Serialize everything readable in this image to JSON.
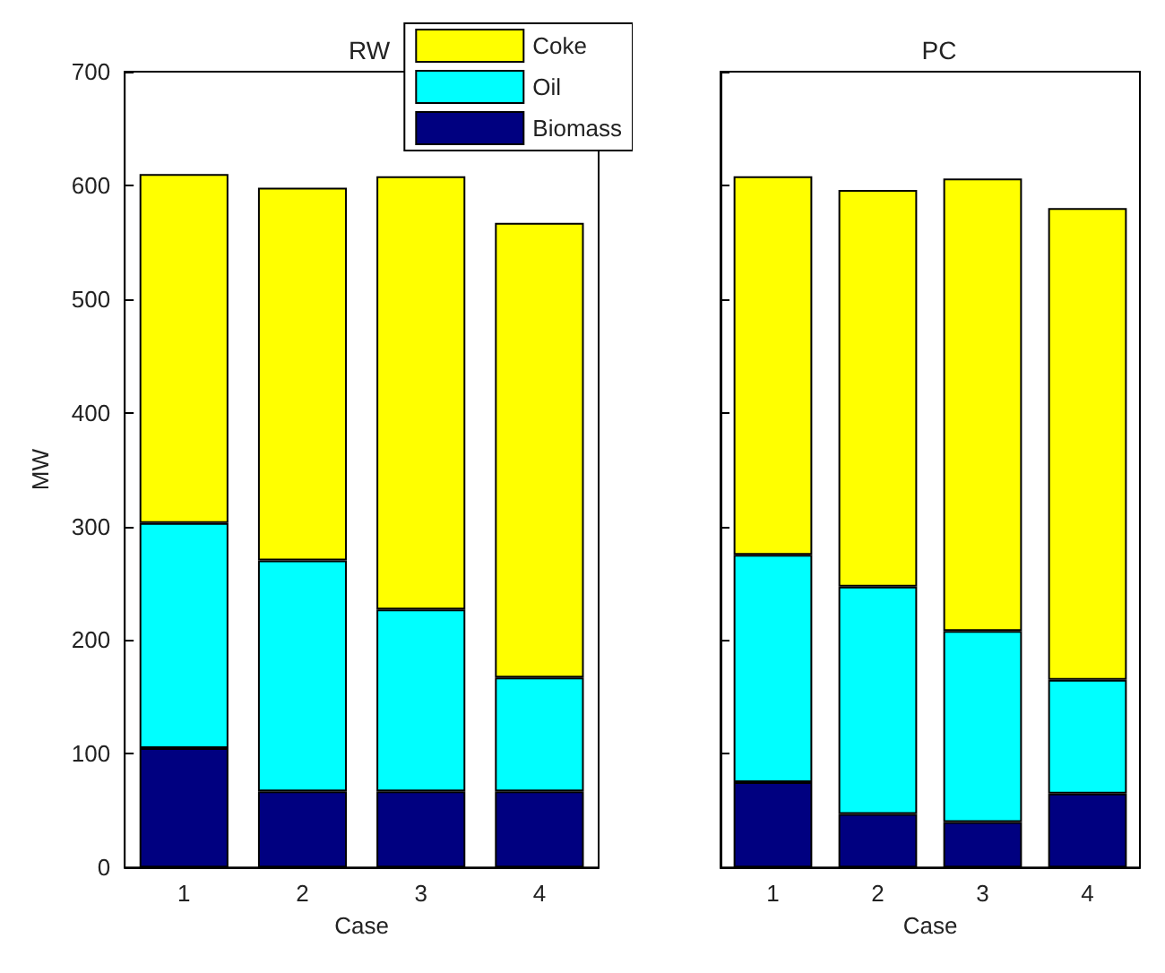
{
  "chart_data": [
    {
      "type": "bar",
      "title": "RW",
      "xlabel": "Case",
      "ylabel": "MW",
      "categories": [
        "1",
        "2",
        "3",
        "4"
      ],
      "stacked": true,
      "ylim": [
        0,
        700
      ],
      "yticks": [
        0,
        100,
        200,
        300,
        400,
        500,
        600,
        700
      ],
      "grid": false,
      "legend": "top right",
      "series": [
        {
          "name": "Biomass",
          "color": "#000080",
          "values": [
            105,
            67,
            67,
            67
          ]
        },
        {
          "name": "Oil",
          "color": "#00ffff",
          "values": [
            198,
            203,
            160,
            100
          ]
        },
        {
          "name": "Coke",
          "color": "#ffff00",
          "values": [
            307,
            328,
            381,
            400
          ]
        }
      ]
    },
    {
      "type": "bar",
      "title": "PC",
      "xlabel": "Case",
      "categories": [
        "1",
        "2",
        "3",
        "4"
      ],
      "stacked": true,
      "ylim": [
        0,
        700
      ],
      "yticks": [
        0,
        100,
        200,
        300,
        400,
        500,
        600,
        700
      ],
      "grid": false,
      "legend": false,
      "tick_labels": "x",
      "series": [
        {
          "color": "#000080",
          "values": [
            75,
            47,
            40,
            65
          ]
        },
        {
          "color": "#00ffff",
          "values": [
            200,
            200,
            168,
            100
          ]
        },
        {
          "color": "#ffff00",
          "values": [
            333,
            349,
            398,
            415
          ]
        }
      ]
    }
  ]
}
